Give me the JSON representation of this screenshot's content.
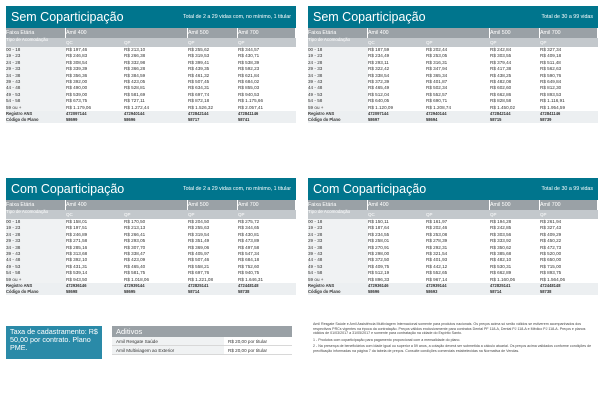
{
  "panels": [
    {
      "title": "Sem Coparticipação",
      "subtitle": "Total de 2 a 29 vidas com, no mínimo, 1 titular",
      "headers": [
        "Faixa Etária",
        "Amil 400",
        "Amil 500",
        "Amil 700"
      ],
      "subheaders": [
        "Tipo de Acomodação",
        "QC",
        "QP",
        "QP",
        "QP"
      ],
      "rows": [
        [
          "00 - 18",
          "R$ 197,46",
          "R$ 213,10",
          "R$ 255,62",
          "R$ 344,57"
        ],
        [
          "19 - 23",
          "R$ 246,83",
          "R$ 266,38",
          "R$ 319,53",
          "R$ 430,71"
        ],
        [
          "24 - 28",
          "R$ 308,54",
          "R$ 332,98",
          "R$ 399,41",
          "R$ 538,39"
        ],
        [
          "29 - 33",
          "R$ 339,39",
          "R$ 366,28",
          "R$ 439,35",
          "R$ 592,23"
        ],
        [
          "34 - 38",
          "R$ 356,36",
          "R$ 384,59",
          "R$ 461,32",
          "R$ 621,84"
        ],
        [
          "39 - 43",
          "R$ 392,00",
          "R$ 423,05",
          "R$ 507,45",
          "R$ 684,02"
        ],
        [
          "44 - 48",
          "R$ 490,00",
          "R$ 528,81",
          "R$ 634,31",
          "R$ 855,03"
        ],
        [
          "49 - 53",
          "R$ 539,00",
          "R$ 581,69",
          "R$ 697,74",
          "R$ 940,53"
        ],
        [
          "54 - 58",
          "R$ 673,75",
          "R$ 727,11",
          "R$ 872,18",
          "R$ 1.175,66"
        ],
        [
          "59 ou +",
          "R$ 1.179,06",
          "R$ 1.272,44",
          "R$ 1.526,32",
          "R$ 2.057,41"
        ]
      ],
      "registro": [
        "Registro ANS",
        "472097144",
        "472940144",
        "472842144",
        "472841146"
      ],
      "codigo": [
        "Código do Plano",
        "58699",
        "58696",
        "58717",
        "58741"
      ]
    },
    {
      "title": "Sem Coparticipação",
      "subtitle": "Total de 30 a 99 vidas",
      "headers": [
        "Faixa Etária",
        "Amil 400",
        "Amil 500",
        "Amil 700"
      ],
      "subheaders": [
        "Tipo de Acomodação",
        "QC",
        "QP",
        "QP",
        "QP"
      ],
      "rows": [
        [
          "00 - 18",
          "R$ 187,59",
          "R$ 202,44",
          "R$ 242,84",
          "R$ 327,34"
        ],
        [
          "19 - 23",
          "R$ 234,49",
          "R$ 253,05",
          "R$ 303,55",
          "R$ 409,18"
        ],
        [
          "24 - 28",
          "R$ 293,11",
          "R$ 316,31",
          "R$ 379,44",
          "R$ 511,48"
        ],
        [
          "29 - 33",
          "R$ 322,42",
          "R$ 347,94",
          "R$ 417,38",
          "R$ 562,63"
        ],
        [
          "34 - 38",
          "R$ 338,54",
          "R$ 365,34",
          "R$ 438,25",
          "R$ 590,76"
        ],
        [
          "39 - 43",
          "R$ 372,39",
          "R$ 401,87",
          "R$ 482,08",
          "R$ 649,84"
        ],
        [
          "44 - 48",
          "R$ 465,49",
          "R$ 502,34",
          "R$ 602,60",
          "R$ 812,30"
        ],
        [
          "49 - 53",
          "R$ 512,04",
          "R$ 552,57",
          "R$ 662,86",
          "R$ 893,53"
        ],
        [
          "54 - 58",
          "R$ 640,05",
          "R$ 690,71",
          "R$ 828,58",
          "R$ 1.116,91"
        ],
        [
          "59 ou +",
          "R$ 1.120,09",
          "R$ 1.208,74",
          "R$ 1.450,02",
          "R$ 1.954,59"
        ]
      ],
      "registro": [
        "Registro ANS",
        "472097144",
        "472940144",
        "472842144",
        "472841146"
      ],
      "codigo": [
        "Código do Plano",
        "58697",
        "58694",
        "58715",
        "58739"
      ]
    },
    {
      "title": "Com Coparticipação",
      "subtitle": "Total de 2 a 29 vidas com, no mínimo, 1 titular",
      "headers": [
        "Faixa Etária",
        "Amil 400",
        "Amil 500",
        "Amil 700"
      ],
      "subheaders": [
        "Tipo de Acomodação",
        "QC",
        "QP",
        "QP",
        "QP"
      ],
      "rows": [
        [
          "00 - 18",
          "R$ 158,01",
          "R$ 170,50",
          "R$ 204,50",
          "R$ 275,72"
        ],
        [
          "19 - 23",
          "R$ 197,51",
          "R$ 213,13",
          "R$ 255,63",
          "R$ 344,65"
        ],
        [
          "24 - 28",
          "R$ 246,89",
          "R$ 266,41",
          "R$ 319,54",
          "R$ 430,81"
        ],
        [
          "29 - 33",
          "R$ 271,58",
          "R$ 293,05",
          "R$ 351,49",
          "R$ 473,89"
        ],
        [
          "34 - 38",
          "R$ 285,16",
          "R$ 307,70",
          "R$ 369,06",
          "R$ 497,58"
        ],
        [
          "39 - 43",
          "R$ 313,68",
          "R$ 338,47",
          "R$ 405,97",
          "R$ 547,34"
        ],
        [
          "44 - 48",
          "R$ 392,10",
          "R$ 423,09",
          "R$ 507,46",
          "R$ 684,18"
        ],
        [
          "49 - 53",
          "R$ 431,31",
          "R$ 465,40",
          "R$ 558,21",
          "R$ 752,60"
        ],
        [
          "54 - 58",
          "R$ 539,14",
          "R$ 581,75",
          "R$ 697,76",
          "R$ 940,75"
        ],
        [
          "59 ou +",
          "R$ 943,50",
          "R$ 1.018,06",
          "R$ 1.221,08",
          "R$ 1.646,31"
        ]
      ],
      "registro": [
        "Registro ANS",
        "472936146",
        "472939144",
        "472825141",
        "472448148"
      ],
      "codigo": [
        "Código do Plano",
        "58698",
        "58695",
        "58714",
        "58738"
      ]
    },
    {
      "title": "Com Coparticipação",
      "subtitle": "Total de 30 a 99 vidas",
      "headers": [
        "Faixa Etária",
        "Amil 400",
        "Amil 500",
        "Amil 700"
      ],
      "subheaders": [
        "Tipo de Acomodação",
        "QC",
        "QP",
        "QP",
        "QP"
      ],
      "rows": [
        [
          "00 - 18",
          "R$ 150,11",
          "R$ 161,97",
          "R$ 194,28",
          "R$ 261,94"
        ],
        [
          "19 - 23",
          "R$ 187,64",
          "R$ 202,46",
          "R$ 242,85",
          "R$ 327,43"
        ],
        [
          "24 - 28",
          "R$ 234,55",
          "R$ 253,08",
          "R$ 303,56",
          "R$ 409,29"
        ],
        [
          "29 - 33",
          "R$ 258,01",
          "R$ 278,39",
          "R$ 333,92",
          "R$ 450,22"
        ],
        [
          "34 - 38",
          "R$ 270,91",
          "R$ 292,31",
          "R$ 350,62",
          "R$ 472,73"
        ],
        [
          "39 - 43",
          "R$ 298,00",
          "R$ 321,54",
          "R$ 385,68",
          "R$ 520,00"
        ],
        [
          "44 - 48",
          "R$ 372,50",
          "R$ 401,93",
          "R$ 482,10",
          "R$ 650,00"
        ],
        [
          "49 - 53",
          "R$ 409,75",
          "R$ 442,12",
          "R$ 530,31",
          "R$ 715,00"
        ],
        [
          "54 - 58",
          "R$ 512,19",
          "R$ 552,65",
          "R$ 662,89",
          "R$ 893,75"
        ],
        [
          "59 ou +",
          "R$ 896,33",
          "R$ 967,14",
          "R$ 1.160,06",
          "R$ 1.564,06"
        ]
      ],
      "registro": [
        "Registro ANS",
        "472936146",
        "472939144",
        "472825141",
        "472448148"
      ],
      "codigo": [
        "Código do Plano",
        "58696",
        "58693",
        "58714",
        "58738"
      ]
    }
  ],
  "taxa": "Taxa de cadastramento: R$ 50,00 por contrato. Plano PME.",
  "aditivos": {
    "title": "Aditivos",
    "rows": [
      [
        "Amil Resgate Saúde",
        "R$ 20,00 por titular"
      ],
      [
        "Amil Multiviagem ao Exterior",
        "R$ 20,00 por titular"
      ]
    ]
  },
  "notes": [
    "Amil Resgate Saúde e Amil Assistência Multiviagem Internacional somente para produtos nacionais. Os preços acima só serão válidos se estiverem acompanhados dos respectivos PRCs vigentes na época da contratação. Preços válidos exclusivamente para contratos Dental PF 118-A, Dental PJ 118-A e Mêdico PJ 118-A. Preços e planos válidos de 01/03/2017 a 31/05/2017 e somente para contratação na cidade do Espírito Santo.",
    "1 - Produtos com coparticipação para pagamento proporcional com a mensalidade do plano.",
    "2 - Na presença de beneficiários com idade igual ou superior a 59 anos, a cotação deverá ser submetida a cálculo atuarial. Os preços acima validados conforme condições de precificação informadas na página 7 da tabela de preços. Consulte condições comerciais estabelecidas na Normativa de Vendas."
  ]
}
